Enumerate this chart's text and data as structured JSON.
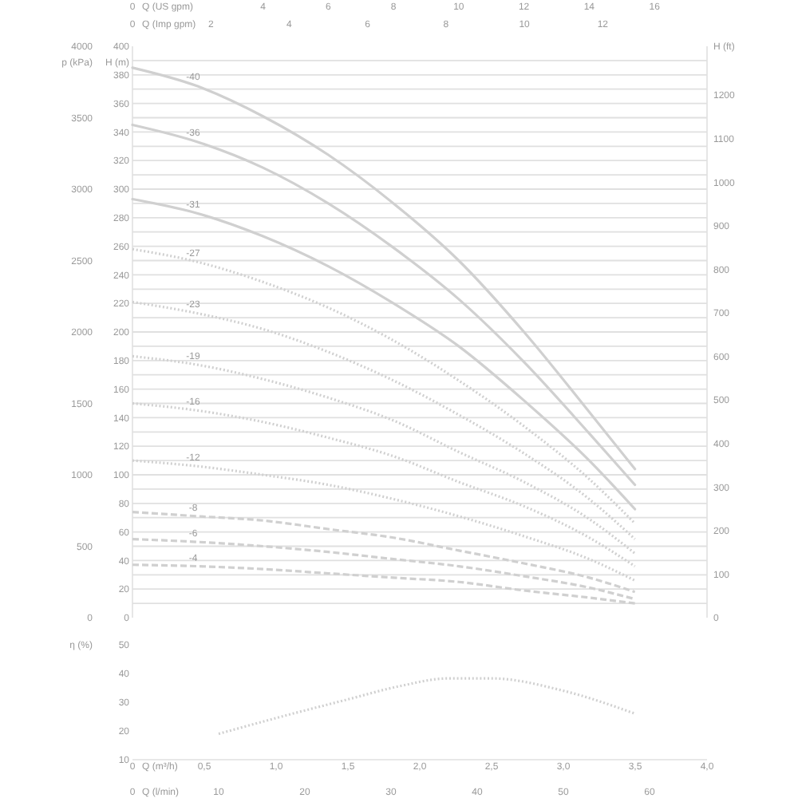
{
  "chart_data": [
    {
      "type": "line",
      "xlabel": "Q (US gpm)",
      "xlim": [
        0,
        17.61
      ],
      "xticks": [
        0,
        4,
        6,
        8,
        10,
        12,
        14,
        16
      ],
      "x2label": "Q (Imp gpm)",
      "x2lim": [
        0,
        14.66
      ],
      "x2ticks": [
        0,
        2,
        4,
        6,
        8,
        10,
        12
      ],
      "ylabel": "H (m)",
      "ylim": [
        0,
        400
      ],
      "yticks": [
        0,
        {
          "value": 10,
          "label": null
        },
        20,
        {
          "value": 30,
          "label": null
        },
        40,
        {
          "value": 50,
          "label": null
        },
        60,
        {
          "value": 70,
          "label": null
        },
        80,
        {
          "value": 90,
          "label": null
        },
        100,
        {
          "value": 110,
          "label": null
        },
        120,
        {
          "value": 130,
          "label": null
        },
        140,
        {
          "value": 150,
          "label": null
        },
        160,
        {
          "value": 170,
          "label": null
        },
        180,
        {
          "value": 190,
          "label": null
        },
        200,
        {
          "value": 210,
          "label": null
        },
        220,
        {
          "value": 230,
          "label": null
        },
        240,
        {
          "value": 250,
          "label": null
        },
        260,
        {
          "value": 270,
          "label": null
        },
        280,
        {
          "value": 290,
          "label": null
        },
        300,
        {
          "value": 310,
          "label": null
        },
        320,
        {
          "value": 330,
          "label": null
        },
        340,
        {
          "value": 350,
          "label": null
        },
        360,
        {
          "value": 370,
          "label": null
        },
        380,
        {
          "value": 390,
          "label": null
        },
        400
      ],
      "y2label": "H (ft)",
      "y2lim": [
        0,
        1312.3
      ],
      "y2ticks": [
        0,
        100,
        200,
        300,
        400,
        500,
        600,
        700,
        800,
        900,
        1000,
        1100,
        1200
      ],
      "y3label": "p (kPa)",
      "y3lim": [
        0,
        4000
      ],
      "y3ticks": [
        0,
        500,
        1000,
        1500,
        2000,
        2500,
        3000,
        3500,
        4000
      ],
      "grid": "y",
      "series": [
        {
          "name": "-40",
          "color": "#d0d0d0",
          "line_style": "solid",
          "x": [
            0,
            2,
            4,
            6,
            8,
            10,
            12,
            14,
            15.4
          ],
          "values": [
            385,
            372,
            351,
            324,
            290,
            250,
            200,
            144,
            104
          ]
        },
        {
          "name": "-36",
          "color": "#d0d0d0",
          "line_style": "solid",
          "x": [
            0,
            2,
            4,
            6,
            8,
            10,
            12,
            14,
            15.4
          ],
          "values": [
            345,
            333,
            315,
            290,
            259,
            223,
            179,
            129,
            93
          ]
        },
        {
          "name": "-31",
          "color": "#d0d0d0",
          "line_style": "solid",
          "x": [
            0,
            2,
            4,
            6,
            8,
            10,
            12,
            14,
            15.4
          ],
          "values": [
            293,
            283,
            267,
            246,
            220,
            190,
            152,
            110,
            76
          ]
        },
        {
          "name": "-27",
          "color": "#d0d0d0",
          "line_style": "dotted",
          "x": [
            0,
            2,
            4,
            6,
            8,
            10,
            12,
            14,
            15.4
          ],
          "values": [
            258,
            249,
            235,
            217,
            194,
            166,
            134,
            97,
            66
          ]
        },
        {
          "name": "-23",
          "color": "#d0d0d0",
          "line_style": "dotted",
          "x": [
            0,
            2,
            4,
            6,
            8,
            10,
            12,
            14,
            15.4
          ],
          "values": [
            221,
            213,
            202,
            186,
            166,
            142,
            115,
            83,
            55
          ]
        },
        {
          "name": "-19",
          "color": "#d0d0d0",
          "line_style": "dotted",
          "x": [
            0,
            2,
            4,
            6,
            8,
            10,
            12,
            14,
            15.4
          ],
          "values": [
            183,
            177,
            167,
            154,
            138,
            116,
            95,
            69,
            45
          ]
        },
        {
          "name": "-16",
          "color": "#d0d0d0",
          "line_style": "dotted",
          "x": [
            0,
            2,
            4,
            6,
            8,
            10,
            12,
            14,
            15.4
          ],
          "values": [
            150,
            145,
            137,
            126,
            113,
            95,
            78,
            56,
            36
          ]
        },
        {
          "name": "-12",
          "color": "#d0d0d0",
          "line_style": "dotted",
          "x": [
            0,
            2,
            4,
            6,
            8,
            10,
            12,
            14,
            15.4
          ],
          "values": [
            110,
            106,
            100,
            93,
            83,
            71,
            57,
            41,
            26
          ]
        },
        {
          "name": "-8",
          "color": "#d0d0d0",
          "line_style": "dashed",
          "x": [
            0,
            2,
            4,
            6,
            8,
            10,
            12,
            14,
            15.4
          ],
          "values": [
            74,
            71,
            68,
            62,
            56,
            47,
            38,
            28,
            18
          ]
        },
        {
          "name": "-6",
          "color": "#d0d0d0",
          "line_style": "dashed",
          "x": [
            0,
            2,
            4,
            6,
            8,
            10,
            12,
            14,
            15.4
          ],
          "values": [
            55,
            53,
            50,
            46,
            41,
            36,
            29,
            21,
            13
          ]
        },
        {
          "name": "-4",
          "color": "#d0d0d0",
          "line_style": "dashed",
          "x": [
            0,
            2,
            4,
            6,
            8,
            10,
            12,
            14,
            15.4
          ],
          "values": [
            37,
            36,
            34,
            31,
            28,
            25,
            19,
            14,
            10
          ]
        }
      ]
    },
    {
      "type": "line",
      "xlabel": "Q (m³/h)",
      "xlim": [
        0,
        4
      ],
      "xticks": [
        0,
        {
          "value": 0.5,
          "label": "0,5"
        },
        {
          "value": 1,
          "label": "1,0"
        },
        {
          "value": 1.5,
          "label": "1,5"
        },
        {
          "value": 2,
          "label": "2,0"
        },
        {
          "value": 2.5,
          "label": "2,5"
        },
        {
          "value": 3,
          "label": "3,0"
        },
        {
          "value": 3.5,
          "label": "3,5"
        },
        {
          "value": 4,
          "label": "4,0"
        }
      ],
      "x2label": "Q (l/min)",
      "x2lim": [
        0,
        66.67
      ],
      "x2ticks": [
        0,
        10,
        20,
        30,
        40,
        50,
        60
      ],
      "ylabel": "η (%)",
      "ylim": [
        10,
        50
      ],
      "yticks": [
        10,
        20,
        30,
        40,
        50
      ],
      "series": [
        {
          "color": "#d0d0d0",
          "line_style": "dotted",
          "x": [
            0.6,
            1,
            1.5,
            1.86,
            2.2,
            2.5,
            3,
            3.5
          ],
          "values": [
            19,
            24.5,
            31,
            35.6,
            38.3,
            38.3,
            34,
            26
          ]
        }
      ]
    }
  ]
}
